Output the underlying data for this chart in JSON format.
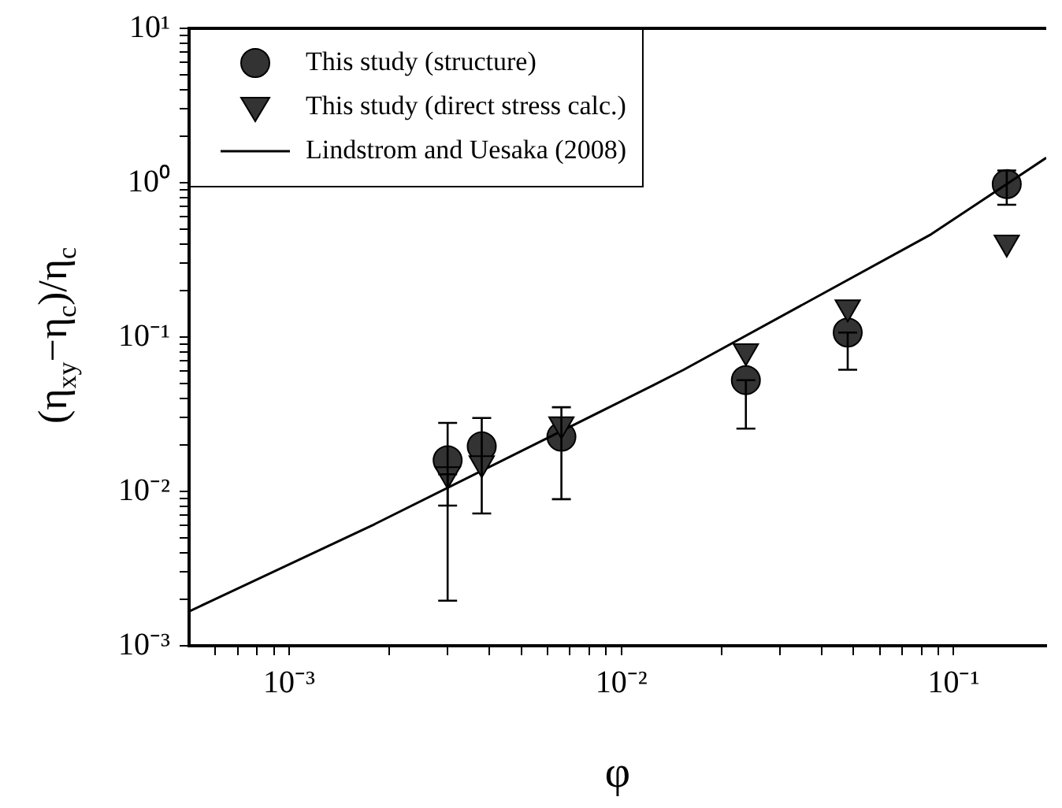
{
  "chart_data": {
    "type": "scatter",
    "xlabel": "φ",
    "ylabel": "(η$_{xy}$−η$_{c}$)/η$_{c}$",
    "log": "xy",
    "legend": "top left",
    "grid": false,
    "xlim": [
      0.0005,
      0.19
    ],
    "ylim": [
      0.001,
      10
    ],
    "xticks": [
      {
        "value": 0.0006,
        "label": null
      },
      {
        "value": 0.0007,
        "label": null
      },
      {
        "value": 0.0008,
        "label": null
      },
      {
        "value": 0.0009,
        "label": null
      },
      {
        "value": 0.001,
        "label": "10⁻³"
      },
      {
        "value": 0.002,
        "label": null
      },
      {
        "value": 0.003,
        "label": null
      },
      {
        "value": 0.004,
        "label": null
      },
      {
        "value": 0.005,
        "label": null
      },
      {
        "value": 0.006,
        "label": null
      },
      {
        "value": 0.007,
        "label": null
      },
      {
        "value": 0.008,
        "label": null
      },
      {
        "value": 0.009,
        "label": null
      },
      {
        "value": 0.01,
        "label": "10⁻²"
      },
      {
        "value": 0.02,
        "label": null
      },
      {
        "value": 0.03,
        "label": null
      },
      {
        "value": 0.04,
        "label": null
      },
      {
        "value": 0.05,
        "label": null
      },
      {
        "value": 0.06,
        "label": null
      },
      {
        "value": 0.07,
        "label": null
      },
      {
        "value": 0.08,
        "label": null
      },
      {
        "value": 0.09,
        "label": null
      },
      {
        "value": 0.1,
        "label": "10⁻¹"
      }
    ],
    "yticks": [
      {
        "value": 0.001,
        "label": "10⁻³"
      },
      {
        "value": 0.002,
        "label": null
      },
      {
        "value": 0.003,
        "label": null
      },
      {
        "value": 0.004,
        "label": null
      },
      {
        "value": 0.005,
        "label": null
      },
      {
        "value": 0.006,
        "label": null
      },
      {
        "value": 0.007,
        "label": null
      },
      {
        "value": 0.008,
        "label": null
      },
      {
        "value": 0.009,
        "label": null
      },
      {
        "value": 0.01,
        "label": "10⁻²"
      },
      {
        "value": 0.02,
        "label": null
      },
      {
        "value": 0.03,
        "label": null
      },
      {
        "value": 0.04,
        "label": null
      },
      {
        "value": 0.05,
        "label": null
      },
      {
        "value": 0.06,
        "label": null
      },
      {
        "value": 0.07,
        "label": null
      },
      {
        "value": 0.08,
        "label": null
      },
      {
        "value": 0.09,
        "label": null
      },
      {
        "value": 0.1,
        "label": "10⁻¹"
      },
      {
        "value": 0.2,
        "label": null
      },
      {
        "value": 0.3,
        "label": null
      },
      {
        "value": 0.4,
        "label": null
      },
      {
        "value": 0.5,
        "label": null
      },
      {
        "value": 0.6,
        "label": null
      },
      {
        "value": 0.7,
        "label": null
      },
      {
        "value": 0.8,
        "label": null
      },
      {
        "value": 0.9,
        "label": null
      },
      {
        "value": 1,
        "label": "10⁰"
      },
      {
        "value": 2,
        "label": null
      },
      {
        "value": 3,
        "label": null
      },
      {
        "value": 4,
        "label": null
      },
      {
        "value": 5,
        "label": null
      },
      {
        "value": 6,
        "label": null
      },
      {
        "value": 7,
        "label": null
      },
      {
        "value": 8,
        "label": null
      },
      {
        "value": 9,
        "label": null
      },
      {
        "value": 10,
        "label": "10¹"
      }
    ],
    "series": [
      {
        "name": "This study (structure)",
        "marker": "circle",
        "color": "#333333",
        "x": [
          0.003,
          0.0038,
          0.0066,
          0.0237,
          0.048,
          0.1445
        ],
        "values": [
          0.0159,
          0.0196,
          0.0226,
          0.0526,
          0.107,
          0.98
        ],
        "errors": [
          [
            0.0081,
            0.0278
          ],
          [
            0.0072,
            0.0299
          ],
          [
            0.0089,
            0.0351
          ],
          [
            0.0255,
            0.0526
          ],
          [
            0.0614,
            0.107
          ],
          [
            0.72,
            1.2
          ]
        ]
      },
      {
        "name": "This study (direct stress calc.)",
        "marker": "triangle",
        "color": "#333333",
        "x": [
          0.003,
          0.0038,
          0.0066,
          0.0237,
          0.048,
          0.1445
        ],
        "values": [
          0.0129,
          0.0152,
          0.0272,
          0.081,
          0.156,
          0.41
        ],
        "errors": [
          [
            0.00196,
            0.0129
          ],
          null,
          null,
          null,
          null,
          null
        ]
      },
      {
        "name": "Lindstrom and Uesaka (2008)",
        "type": "line",
        "marker": "none",
        "line_style": "solid",
        "color": "#000000",
        "x": [
          0.0005,
          0.00181,
          0.01245,
          0.0154,
          0.0857,
          0.19
        ],
        "values": [
          0.00167,
          0.00614,
          0.0486,
          0.0614,
          0.464,
          1.45
        ]
      }
    ]
  }
}
